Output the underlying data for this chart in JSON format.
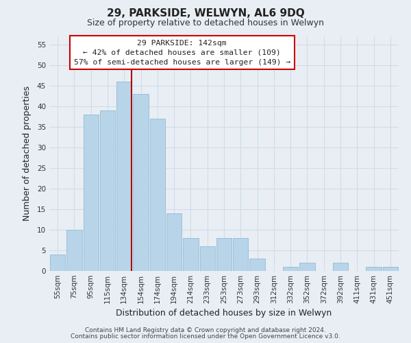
{
  "title": "29, PARKSIDE, WELWYN, AL6 9DQ",
  "subtitle": "Size of property relative to detached houses in Welwyn",
  "xlabel": "Distribution of detached houses by size in Welwyn",
  "ylabel": "Number of detached properties",
  "categories": [
    "55sqm",
    "75sqm",
    "95sqm",
    "115sqm",
    "134sqm",
    "154sqm",
    "174sqm",
    "194sqm",
    "214sqm",
    "233sqm",
    "253sqm",
    "273sqm",
    "293sqm",
    "312sqm",
    "332sqm",
    "352sqm",
    "372sqm",
    "392sqm",
    "411sqm",
    "431sqm",
    "451sqm"
  ],
  "values": [
    4,
    10,
    38,
    39,
    46,
    43,
    37,
    14,
    8,
    6,
    8,
    8,
    3,
    0,
    1,
    2,
    0,
    2,
    0,
    1,
    1
  ],
  "bar_color": "#b8d4e8",
  "bar_edge_color": "#9abfd8",
  "highlight_index": 4,
  "highlight_line_color": "#aa0000",
  "ylim": [
    0,
    57
  ],
  "yticks": [
    0,
    5,
    10,
    15,
    20,
    25,
    30,
    35,
    40,
    45,
    50,
    55
  ],
  "annotation_title": "29 PARKSIDE: 142sqm",
  "annotation_line1": "← 42% of detached houses are smaller (109)",
  "annotation_line2": "57% of semi-detached houses are larger (149) →",
  "annotation_box_color": "#ffffff",
  "annotation_box_edge": "#cc0000",
  "footer1": "Contains HM Land Registry data © Crown copyright and database right 2024.",
  "footer2": "Contains public sector information licensed under the Open Government Licence v3.0.",
  "background_color": "#e8eef4",
  "grid_color": "#d0dce8",
  "title_fontsize": 11,
  "subtitle_fontsize": 9,
  "tick_fontsize": 7.5,
  "axis_label_fontsize": 9
}
